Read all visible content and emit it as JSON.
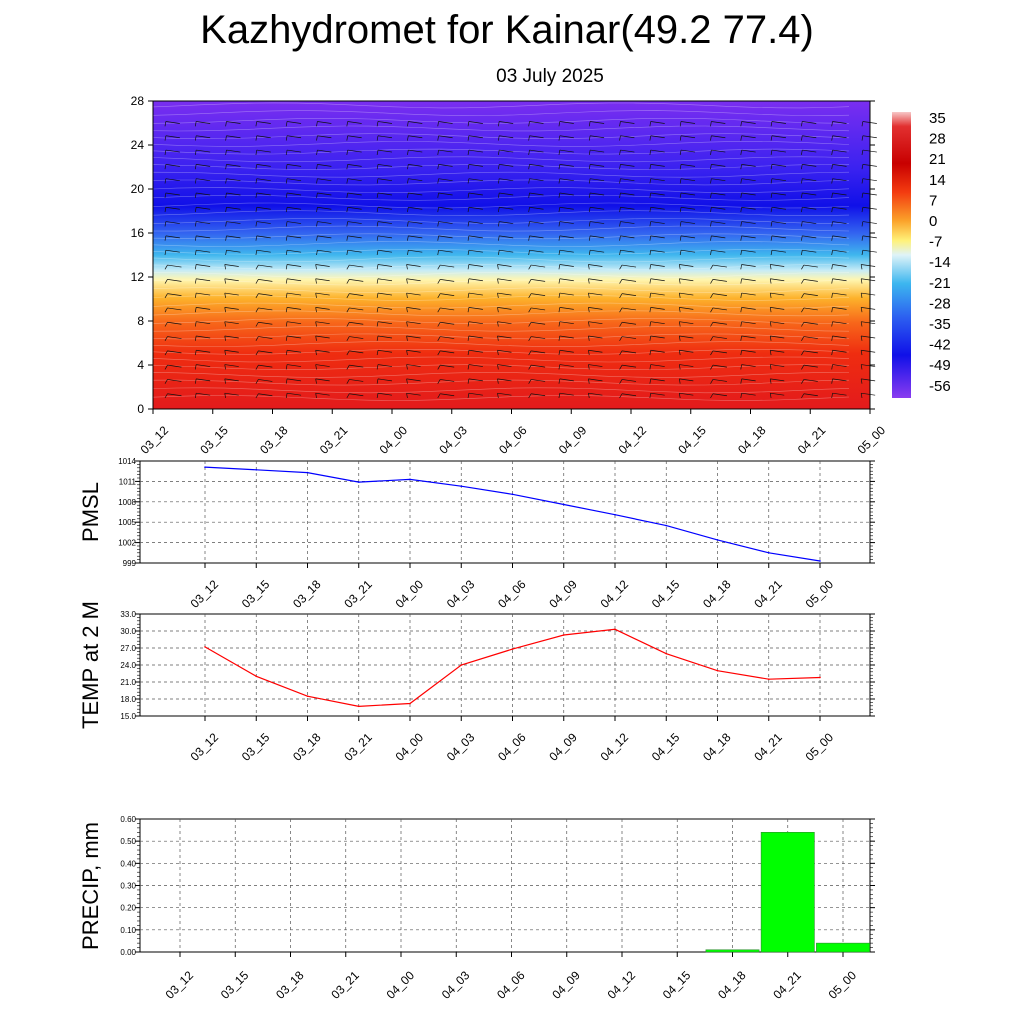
{
  "page": {
    "title": "Kazhydromet for Kainar(49.2 77.4)",
    "subtitle": "03 July 2025"
  },
  "chart_data": [
    {
      "type": "heatmap",
      "name": "temperature-wind-cross-section",
      "title": "",
      "x_tick_labels": [
        "03_12",
        "03_15",
        "03_18",
        "03_21",
        "04_00",
        "04_03",
        "04_06",
        "04_09",
        "04_12",
        "04_15",
        "04_18",
        "04_21",
        "05_00"
      ],
      "y_ticks": [
        0,
        4,
        8,
        12,
        16,
        20,
        24,
        28
      ],
      "ylim": [
        0,
        28
      ],
      "colorbar_labels": [
        "35",
        "28",
        "21",
        "14",
        "7",
        "0",
        "-7",
        "-14",
        "-21",
        "-28",
        "-35",
        "-42",
        "-49",
        "-56"
      ],
      "profile_note": "warm (red) near 0, yellow near 12, light blue near 14-16, deep blue near 20-22, purple above 24",
      "wind_barbs": true
    },
    {
      "type": "line",
      "ylabel": "PMSL",
      "x": [
        "03_12",
        "03_15",
        "03_18",
        "03_21",
        "04_00",
        "04_03",
        "04_06",
        "04_09",
        "04_12",
        "04_15",
        "04_18",
        "04_21",
        "05_00"
      ],
      "y_ticks": [
        "1014",
        "1011",
        "1008",
        "1005",
        "1002",
        "999"
      ],
      "ylim": [
        999,
        1014
      ],
      "series": [
        {
          "values": [
            1013.1,
            1012.7,
            1012.3,
            1010.9,
            1011.3,
            1010.3,
            1009.1,
            1007.6,
            1006.1,
            1004.5,
            1002.4,
            1000.5,
            999.3
          ],
          "color": "#0000ff"
        }
      ],
      "grid": true
    },
    {
      "type": "line",
      "ylabel": "TEMP at 2 M",
      "x": [
        "03_12",
        "03_15",
        "03_18",
        "03_21",
        "04_00",
        "04_03",
        "04_06",
        "04_09",
        "04_12",
        "04_15",
        "04_18",
        "04_21",
        "05_00"
      ],
      "y_ticks": [
        "33.0",
        "30.0",
        "27.0",
        "24.0",
        "21.0",
        "18.0",
        "15.0"
      ],
      "ylim": [
        15,
        33
      ],
      "series": [
        {
          "values": [
            27.2,
            22.0,
            18.5,
            16.7,
            17.2,
            24.0,
            26.8,
            29.3,
            30.3,
            26.0,
            23.0,
            21.5,
            21.8
          ],
          "color": "#ff0000"
        }
      ],
      "grid": true
    },
    {
      "type": "bar",
      "ylabel": "PRECIP, mm",
      "categories": [
        "03_12",
        "03_15",
        "03_18",
        "03_21",
        "04_00",
        "04_03",
        "04_06",
        "04_09",
        "04_12",
        "04_15",
        "04_18",
        "04_21",
        "05_00"
      ],
      "y_ticks": [
        "0.60",
        "0.50",
        "0.40",
        "0.30",
        "0.20",
        "0.10",
        "0.00"
      ],
      "ylim": [
        0,
        0.6
      ],
      "values": [
        0,
        0,
        0,
        0,
        0,
        0,
        0,
        0,
        0,
        0,
        0.01,
        0.54,
        0.04
      ],
      "color": "#00ff00",
      "grid": true
    }
  ]
}
